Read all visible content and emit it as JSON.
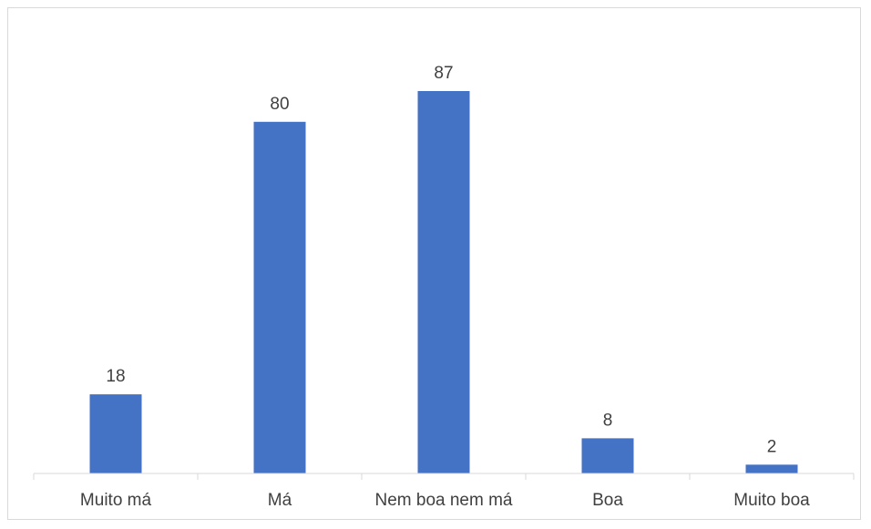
{
  "chart_data": {
    "type": "bar",
    "categories": [
      "Muito má",
      "Má",
      "Nem boa nem má",
      "Boa",
      "Muito boa"
    ],
    "values": [
      18,
      80,
      87,
      8,
      2
    ],
    "title": "",
    "xlabel": "",
    "ylabel": "",
    "ylim": [
      0,
      87
    ],
    "grid": false,
    "legend": "none",
    "data_labels": true,
    "colors": {
      "bar": "#4472c4",
      "axis": "#d9d9d9",
      "text": "#404040",
      "border": "#d9d9d9"
    }
  }
}
